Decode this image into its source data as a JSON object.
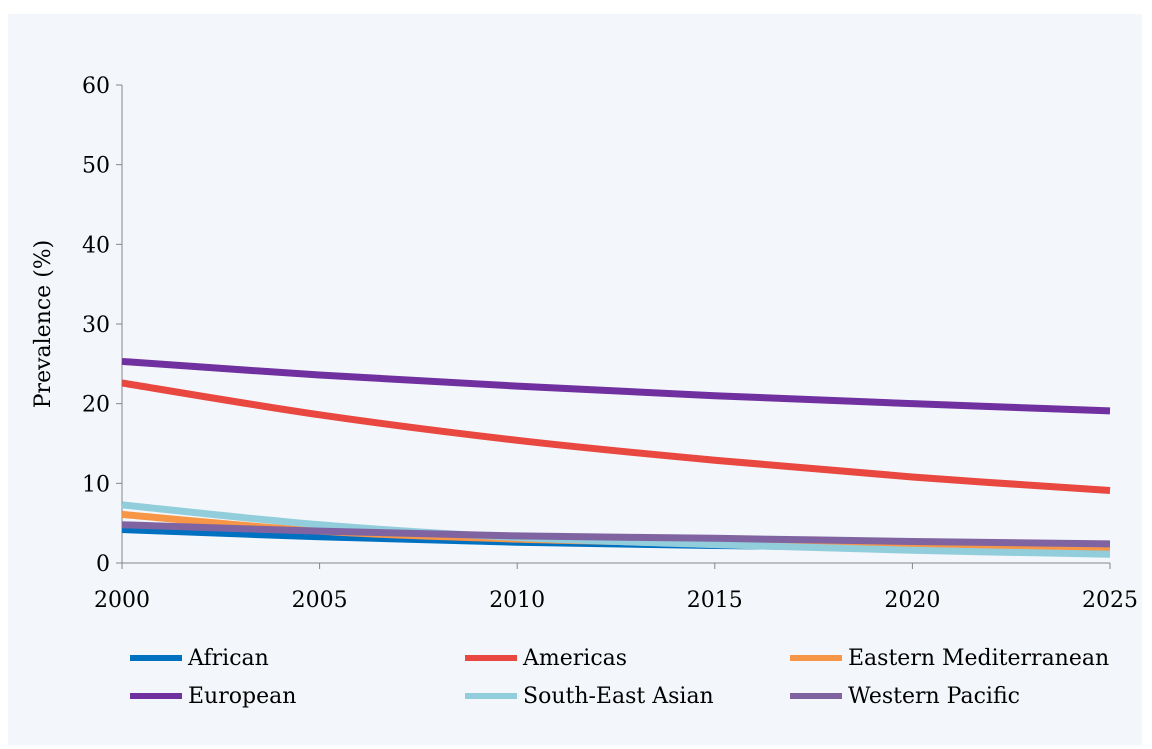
{
  "chart_data": {
    "type": "line",
    "title": "",
    "xlabel": "",
    "ylabel": "Prevalence (%)",
    "xlim": [
      2000,
      2025
    ],
    "ylim": [
      0,
      60
    ],
    "x_ticks": [
      2000,
      2005,
      2010,
      2015,
      2020,
      2025
    ],
    "y_ticks": [
      0,
      10,
      20,
      30,
      40,
      50,
      60
    ],
    "grid": false,
    "legend_position": "bottom",
    "x": [
      2000,
      2005,
      2010,
      2015,
      2020,
      2025
    ],
    "series": [
      {
        "name": "African",
        "color": "#0070c0",
        "values": [
          4.2,
          3.3,
          2.6,
          2.2,
          1.9,
          1.7
        ]
      },
      {
        "name": "Americas",
        "color": "#e8483f",
        "values": [
          22.6,
          18.6,
          15.4,
          12.9,
          10.8,
          9.1
        ]
      },
      {
        "name": "Eastern Mediterranean",
        "color": "#f79646",
        "values": [
          6.1,
          4.0,
          3.0,
          2.5,
          2.1,
          1.8
        ]
      },
      {
        "name": "European",
        "color": "#7030a0",
        "values": [
          25.3,
          23.6,
          22.2,
          21.0,
          20.0,
          19.1
        ]
      },
      {
        "name": "South-East Asian",
        "color": "#92cddc",
        "values": [
          7.3,
          4.8,
          3.2,
          2.3,
          1.6,
          1.1
        ]
      },
      {
        "name": "Western Pacific",
        "color": "#8064a2",
        "values": [
          4.8,
          4.0,
          3.4,
          3.1,
          2.7,
          2.4
        ]
      }
    ]
  }
}
